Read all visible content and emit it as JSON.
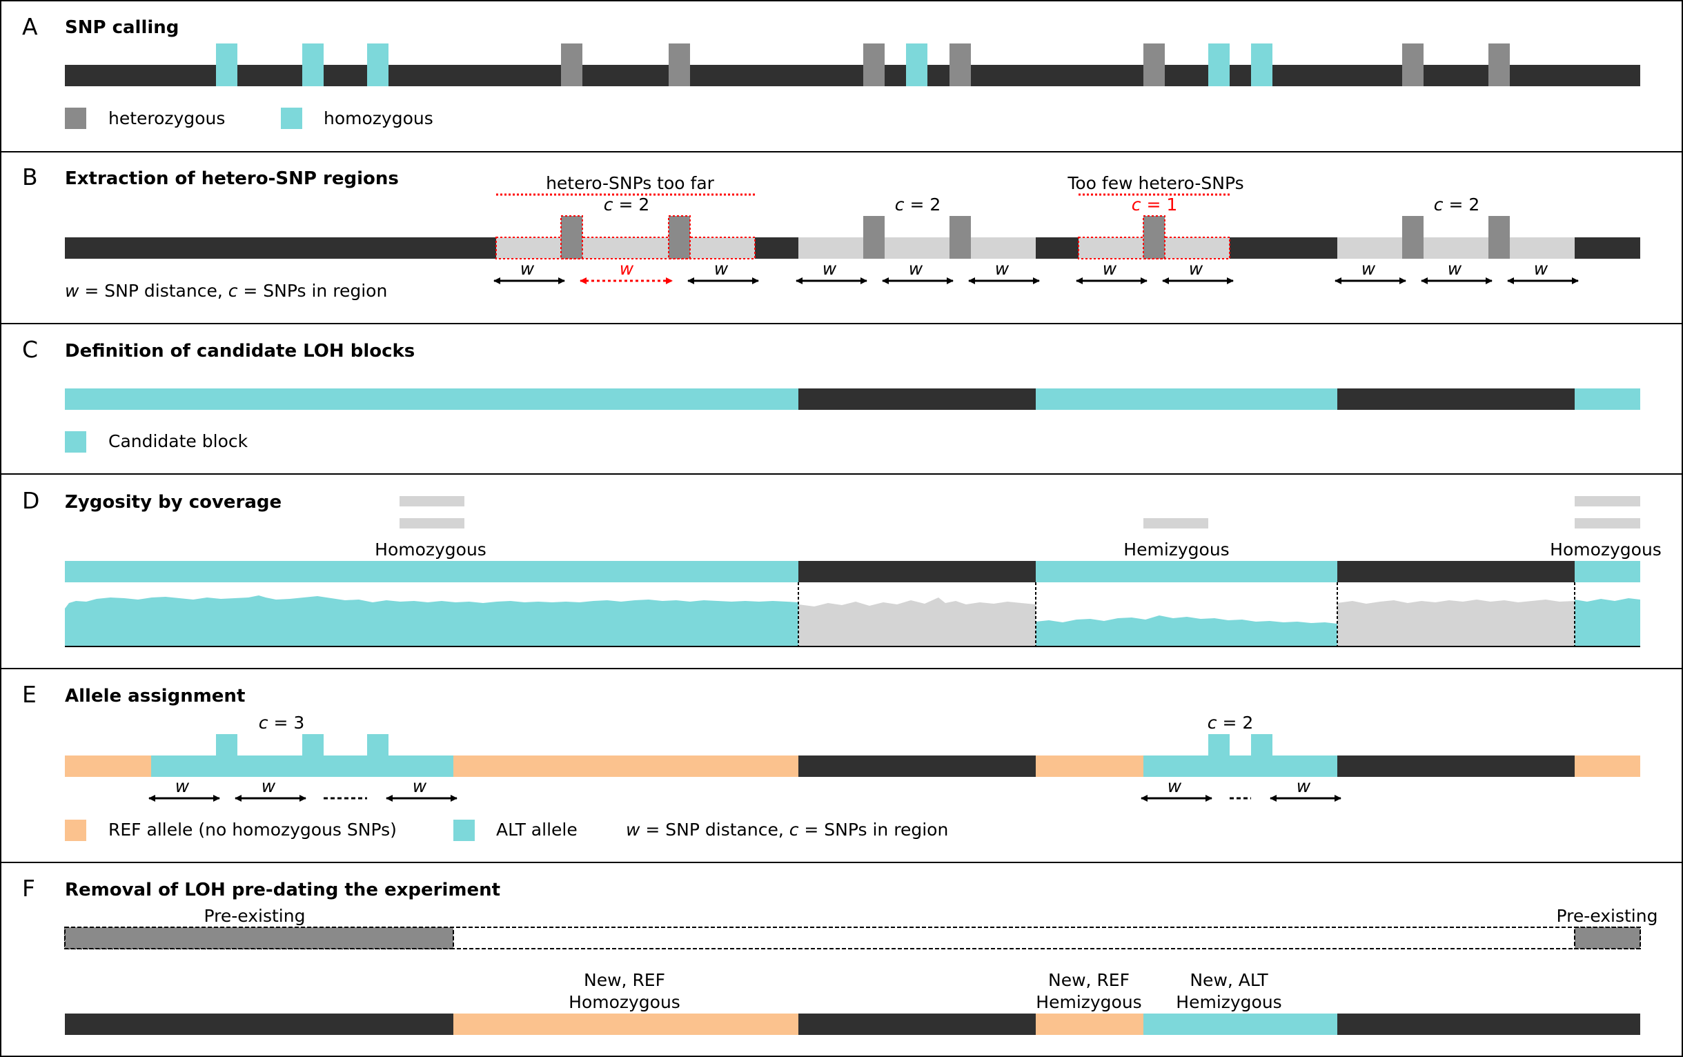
{
  "colors": {
    "chromosome": "#303030",
    "heterozygous": "#8a8a8a",
    "homozygous": "#7dd8da",
    "region": "#d4d4d4",
    "ref": "#fbc28e",
    "error": "#ff0000"
  },
  "panelA": {
    "letter": "A",
    "title": "SNP calling",
    "legend_het": "heterozygous",
    "legend_hom": "homozygous"
  },
  "panelB": {
    "letter": "B",
    "title": "Extraction of hetero-SNP regions",
    "note_far": "hetero-SNPs too far",
    "note_few": "Too few hetero-SNPs",
    "c_var": "c",
    "c_region1": " = 2",
    "c_region2": " = 2",
    "c_region3": " = 1",
    "c_region4": " = 2",
    "w_var": "w",
    "legend_w": "w",
    "legend_rest1": " = SNP distance, ",
    "legend_c": "c",
    "legend_rest2": " = SNPs in region"
  },
  "panelC": {
    "letter": "C",
    "title": "Definition of candidate LOH blocks",
    "legend_candidate": "Candidate block"
  },
  "panelD": {
    "letter": "D",
    "title": "Zygosity by coverage",
    "label_left": "Homozygous",
    "label_mid": "Hemizygous",
    "label_right": "Homozygous"
  },
  "panelE": {
    "letter": "E",
    "title": "Allele assignment",
    "c_var": "c",
    "c_left": " = 3",
    "c_right": " = 2",
    "w_var": "w",
    "legend_ref": "REF allele (no homozygous SNPs)",
    "legend_alt": "ALT allele",
    "legend_w": "w",
    "legend_rest1": " = SNP distance, ",
    "legend_c": "c",
    "legend_rest2": " = SNPs in region"
  },
  "panelF": {
    "letter": "F",
    "title": "Removal of LOH pre-dating the experiment",
    "pre_left": "Pre-existing",
    "pre_right": "Pre-existing",
    "new_ref_hom_1": "New, REF",
    "new_ref_hom_2": "Homozygous",
    "new_ref_hemi_1": "New, REF",
    "new_ref_hemi_2": "Hemizygous",
    "new_alt_hemi_1": "New, ALT",
    "new_alt_hemi_2": "Hemizygous"
  }
}
